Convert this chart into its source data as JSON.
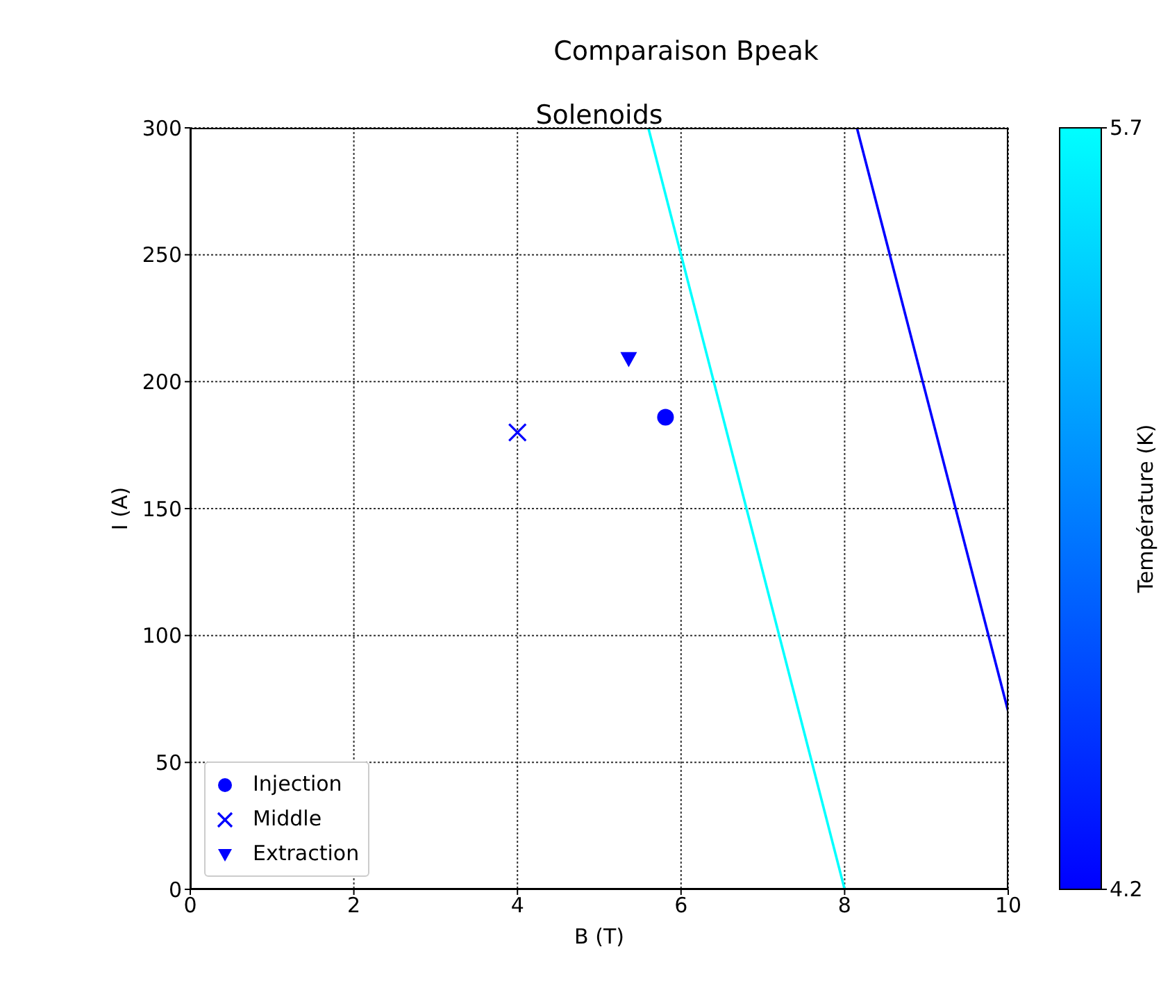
{
  "chart_data": {
    "type": "scatter",
    "title": "Comparaison Bpeak",
    "subtitle": "Solenoids",
    "xlabel": "B (T)",
    "ylabel": "I (A)",
    "clabel": "Température (K)",
    "series": [
      {
        "name": "Injection",
        "marker": "circle",
        "color": "#0000ff",
        "x": [
          5.81
        ],
        "values": [
          186
        ],
        "cvalues": [
          4.2
        ]
      },
      {
        "name": "Middle",
        "marker": "cross",
        "color": "#0000ff",
        "x": [
          4.0
        ],
        "values": [
          180
        ],
        "cvalues": [
          4.2
        ]
      },
      {
        "name": "Extraction",
        "marker": "triangle",
        "color": "#0000ff",
        "x": [
          5.36
        ],
        "values": [
          209
        ],
        "cvalues": [
          4.2
        ]
      },
      {
        "type": "line",
        "color": "#00ffff",
        "x": [
          5.6,
          8.0
        ],
        "values": [
          300,
          0
        ]
      },
      {
        "type": "line",
        "color": "#0000ff",
        "x": [
          8.15,
          10
        ],
        "values": [
          300,
          70
        ]
      }
    ],
    "xlim": [
      0,
      10
    ],
    "xticks": [
      0,
      2,
      4,
      6,
      8,
      10
    ],
    "ylim": [
      0,
      300
    ],
    "yticks": [
      0,
      50,
      100,
      150,
      200,
      250,
      300
    ],
    "clim": [
      4.2,
      5.7
    ],
    "cticks": [
      4.2,
      5.7
    ],
    "grid": true,
    "legend": "bottom left"
  }
}
